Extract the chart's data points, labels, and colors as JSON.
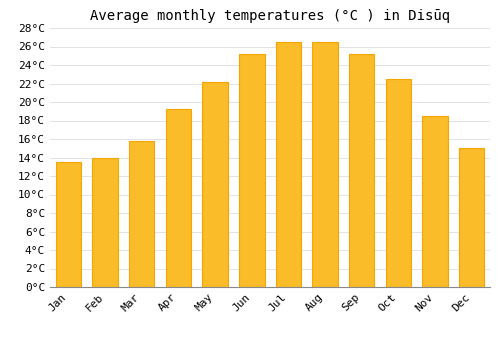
{
  "title": "Average monthly temperatures (°C ) in Disūq",
  "months": [
    "Jan",
    "Feb",
    "Mar",
    "Apr",
    "May",
    "Jun",
    "Jul",
    "Aug",
    "Sep",
    "Oct",
    "Nov",
    "Dec"
  ],
  "temperatures": [
    13.5,
    14.0,
    15.8,
    19.2,
    22.2,
    25.2,
    26.5,
    26.5,
    25.2,
    22.5,
    18.5,
    15.0
  ],
  "bar_color_face": "#FBBC2A",
  "bar_color_edge": "#F5A500",
  "background_color": "#FFFFFF",
  "grid_color": "#DDDDDD",
  "ylim": [
    0,
    28
  ],
  "ytick_step": 2,
  "title_fontsize": 10,
  "tick_fontsize": 8,
  "font_family": "monospace"
}
